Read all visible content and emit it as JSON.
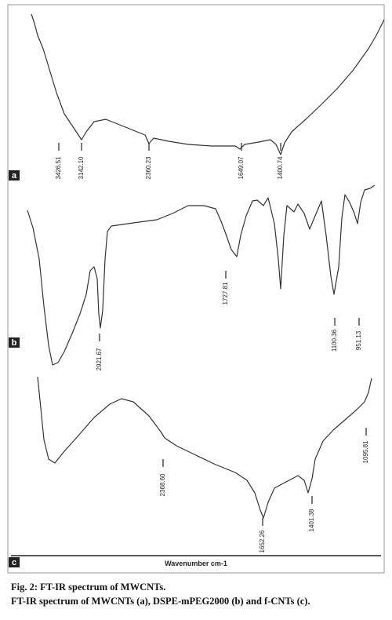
{
  "figure": {
    "panels": [
      {
        "letter": "a",
        "peak_labels": [
          "3426.51",
          "3142.10",
          "2360.23",
          "1649.07",
          "1400.74"
        ]
      },
      {
        "letter": "b",
        "peak_labels": [
          "2921.67",
          "1727.81",
          "1100.36",
          "951.13"
        ]
      },
      {
        "letter": "c",
        "peak_labels": [
          "2368.60",
          "1652.26",
          "1401.38",
          "1095.81"
        ]
      }
    ],
    "x_axis_label": "Wavenumber cm-1"
  },
  "caption": {
    "title": "Fig. 2: FT-IR spectrum of MWCNTs.",
    "text": "FT-IR spectrum of MWCNTs (a), DSPE-mPEG2000 (b) and f-CNTs (c)."
  }
}
